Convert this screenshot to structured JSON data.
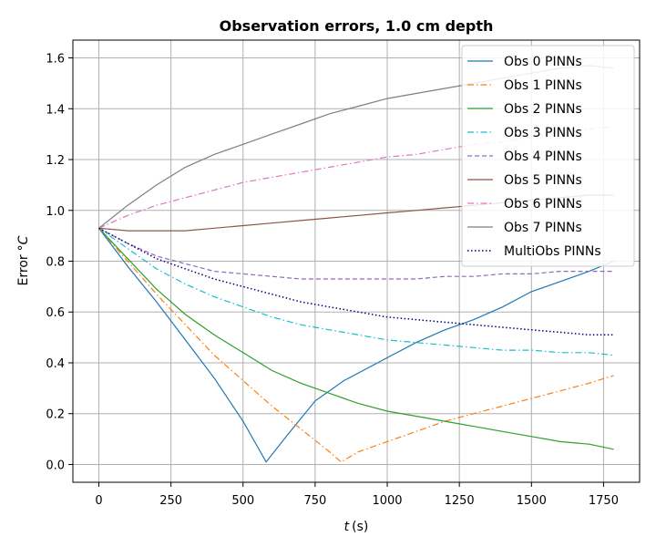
{
  "chart_data": {
    "type": "line",
    "title": "Observation errors, 1.0 cm depth",
    "xlabel_var": "t",
    "xlabel_unit": "(s)",
    "ylabel_text": "Error",
    "ylabel_unit": "°C",
    "xlim": [
      -90,
      1875
    ],
    "ylim": [
      -0.07,
      1.67
    ],
    "xticks": [
      0,
      250,
      500,
      750,
      1000,
      1250,
      1500,
      1750
    ],
    "yticks": [
      0.0,
      0.2,
      0.4,
      0.6,
      0.8,
      1.0,
      1.2,
      1.4,
      1.6
    ],
    "xtick_labels": [
      "0",
      "250",
      "500",
      "750",
      "1000",
      "1250",
      "1500",
      "1750"
    ],
    "ytick_labels": [
      "0.0",
      "0.2",
      "0.4",
      "0.6",
      "0.8",
      "1.0",
      "1.2",
      "1.4",
      "1.6"
    ],
    "grid": true,
    "legend_position": "top-right",
    "series": [
      {
        "name": "Obs 0 PINNs",
        "color": "#1f77b4",
        "style": "solid",
        "x": [
          0,
          100,
          200,
          300,
          400,
          500,
          550,
          580,
          650,
          750,
          850,
          1000,
          1100,
          1200,
          1300,
          1400,
          1500,
          1600,
          1700,
          1785
        ],
        "y": [
          0.93,
          0.78,
          0.64,
          0.49,
          0.34,
          0.17,
          0.07,
          0.01,
          0.11,
          0.25,
          0.33,
          0.42,
          0.48,
          0.53,
          0.57,
          0.62,
          0.68,
          0.72,
          0.76,
          0.8
        ]
      },
      {
        "name": "Obs 1 PINNs",
        "color": "#ff7f0e",
        "style": "dashdot",
        "x": [
          0,
          100,
          200,
          300,
          400,
          500,
          600,
          700,
          800,
          840,
          900,
          1000,
          1100,
          1200,
          1300,
          1400,
          1500,
          1600,
          1700,
          1785
        ],
        "y": [
          0.93,
          0.8,
          0.67,
          0.55,
          0.43,
          0.33,
          0.23,
          0.14,
          0.05,
          0.01,
          0.05,
          0.09,
          0.13,
          0.17,
          0.2,
          0.23,
          0.26,
          0.29,
          0.32,
          0.35
        ]
      },
      {
        "name": "Obs 2 PINNs",
        "color": "#2ca02c",
        "style": "solid",
        "x": [
          0,
          100,
          200,
          300,
          400,
          500,
          600,
          700,
          800,
          900,
          1000,
          1100,
          1200,
          1300,
          1400,
          1500,
          1600,
          1700,
          1785
        ],
        "y": [
          0.93,
          0.81,
          0.69,
          0.59,
          0.51,
          0.44,
          0.37,
          0.32,
          0.28,
          0.24,
          0.21,
          0.19,
          0.17,
          0.15,
          0.13,
          0.11,
          0.09,
          0.08,
          0.06
        ]
      },
      {
        "name": "Obs 3 PINNs",
        "color": "#17becf",
        "style": "dashdot",
        "x": [
          0,
          100,
          200,
          300,
          400,
          500,
          600,
          700,
          800,
          900,
          1000,
          1100,
          1200,
          1300,
          1400,
          1500,
          1600,
          1700,
          1785
        ],
        "y": [
          0.93,
          0.85,
          0.77,
          0.71,
          0.66,
          0.62,
          0.58,
          0.55,
          0.53,
          0.51,
          0.49,
          0.48,
          0.47,
          0.46,
          0.45,
          0.45,
          0.44,
          0.44,
          0.43
        ]
      },
      {
        "name": "Obs 4 PINNs",
        "color": "#9467bd",
        "style": "dashed",
        "x": [
          0,
          100,
          200,
          300,
          400,
          500,
          600,
          700,
          800,
          900,
          1000,
          1100,
          1200,
          1300,
          1400,
          1500,
          1600,
          1700,
          1785
        ],
        "y": [
          0.93,
          0.87,
          0.82,
          0.79,
          0.76,
          0.75,
          0.74,
          0.73,
          0.73,
          0.73,
          0.73,
          0.73,
          0.74,
          0.74,
          0.75,
          0.75,
          0.76,
          0.76,
          0.76
        ]
      },
      {
        "name": "Obs 5 PINNs",
        "color": "#8c564b",
        "style": "solid",
        "x": [
          0,
          100,
          200,
          300,
          400,
          500,
          600,
          700,
          800,
          900,
          1000,
          1100,
          1200,
          1300,
          1400,
          1500,
          1600,
          1700,
          1785
        ],
        "y": [
          0.93,
          0.92,
          0.92,
          0.92,
          0.93,
          0.94,
          0.95,
          0.96,
          0.97,
          0.98,
          0.99,
          1.0,
          1.01,
          1.02,
          1.03,
          1.04,
          1.05,
          1.06,
          1.06
        ]
      },
      {
        "name": "Obs 6 PINNs",
        "color": "#e377c2",
        "style": "dashdot",
        "x": [
          0,
          100,
          200,
          300,
          400,
          500,
          600,
          700,
          800,
          900,
          1000,
          1100,
          1200,
          1300,
          1400,
          1500,
          1600,
          1700,
          1785
        ],
        "y": [
          0.93,
          0.98,
          1.02,
          1.05,
          1.08,
          1.11,
          1.13,
          1.15,
          1.17,
          1.19,
          1.21,
          1.22,
          1.24,
          1.26,
          1.27,
          1.29,
          1.31,
          1.32,
          1.33
        ]
      },
      {
        "name": "Obs 7 PINNs",
        "color": "#7f7f7f",
        "style": "solid",
        "x": [
          0,
          100,
          200,
          300,
          400,
          500,
          600,
          700,
          800,
          900,
          1000,
          1100,
          1200,
          1300,
          1400,
          1500,
          1600,
          1700,
          1785
        ],
        "y": [
          0.93,
          1.02,
          1.1,
          1.17,
          1.22,
          1.26,
          1.3,
          1.34,
          1.38,
          1.41,
          1.44,
          1.46,
          1.48,
          1.5,
          1.52,
          1.54,
          1.56,
          1.57,
          1.56
        ]
      },
      {
        "name": "MultiObs PINNs",
        "color": "#000080",
        "style": "dotted",
        "x": [
          0,
          100,
          200,
          300,
          400,
          500,
          600,
          700,
          800,
          900,
          1000,
          1100,
          1200,
          1300,
          1400,
          1500,
          1600,
          1700,
          1785
        ],
        "y": [
          0.93,
          0.87,
          0.81,
          0.77,
          0.73,
          0.7,
          0.67,
          0.64,
          0.62,
          0.6,
          0.58,
          0.57,
          0.56,
          0.55,
          0.54,
          0.53,
          0.52,
          0.51,
          0.51
        ]
      }
    ]
  }
}
